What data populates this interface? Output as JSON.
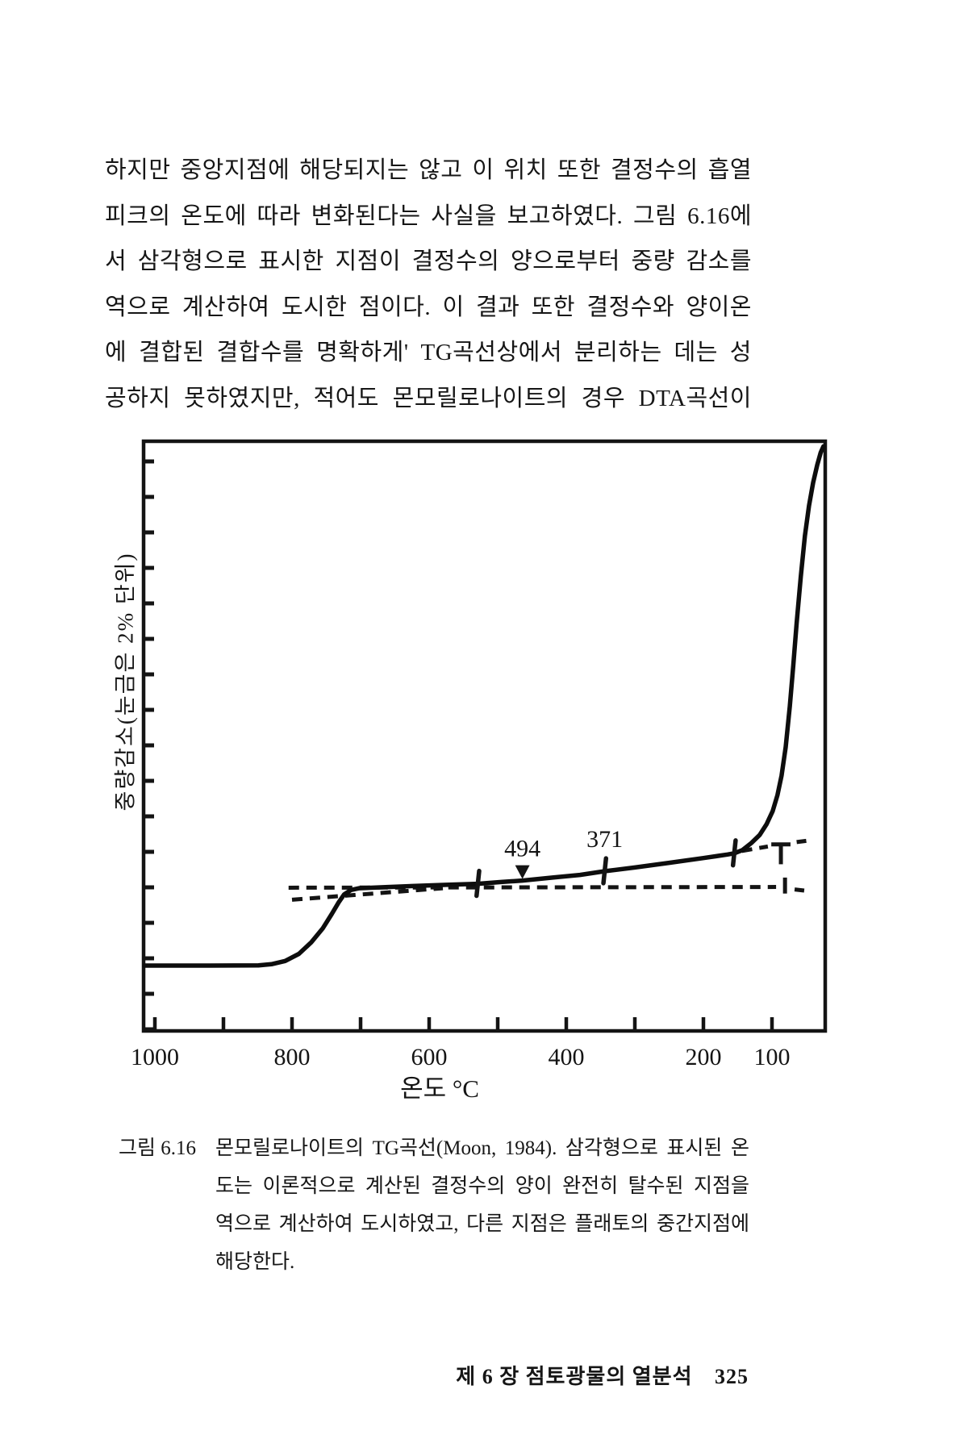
{
  "page": {
    "body_lines": [
      "하지만 중앙지점에 해당되지는 않고 이 위치 또한 결정수의 흡열",
      "피크의 온도에 따라 변화된다는 사실을 보고하였다. 그림 6.16에",
      "서 삼각형으로 표시한 지점이 결정수의 양으로부터 중량 감소를",
      "역으로 계산하여 도시한 점이다. 이 결과 또한 결정수와 양이온",
      "에 결합된 결합수를 명확하게' TG곡선상에서 분리하는 데는 성",
      "공하지 못하였지만, 적어도 몬모릴로나이트의 경우 DTA곡선이"
    ],
    "caption": {
      "label": "그림 6.16",
      "lines": [
        "몬모릴로나이트의 TG곡선(Moon, 1984). 삼각형으로 표시된 온",
        "도는 이론적으로 계산된 결정수의 양이 완전히 탈수된 지점을",
        "역으로 계산하여 도시하였고, 다른 지점은 플래토의 중간지점에",
        "해당한다."
      ]
    },
    "footer": {
      "chapter": "제 6 장   점토광물의 열분석",
      "page_number": "325"
    }
  },
  "chart_data": {
    "type": "line",
    "title": "",
    "xlabel": "온도 °C",
    "ylabel": "중량감소(눈금은 2% 단위)",
    "x_axis": {
      "direction": "reversed",
      "range_c": [
        1016,
        22
      ],
      "ticks_c": [
        1000,
        900,
        800,
        700,
        600,
        500,
        400,
        300,
        200,
        100
      ],
      "labeled_c": [
        1000,
        800,
        600,
        400,
        200,
        100
      ],
      "tick_labels": [
        "1000",
        "800",
        "600",
        "400",
        "200",
        "100"
      ]
    },
    "y_axis": {
      "division_pct": 2,
      "range_pct": [
        -8.1,
        25.2
      ],
      "tick_pcts": [
        -8,
        -6,
        -4,
        -2,
        0,
        2,
        4,
        6,
        8,
        10,
        12,
        14,
        16,
        18,
        20,
        22,
        24
      ],
      "gridlines": false,
      "numeric_labels": false
    },
    "series": [
      {
        "name": "TG curve (montmorillonite)",
        "points": [
          [
            1015,
            -4.41
          ],
          [
            920,
            -4.41
          ],
          [
            849,
            -4.4
          ],
          [
            830,
            -4.33
          ],
          [
            810,
            -4.15
          ],
          [
            790,
            -3.75
          ],
          [
            772,
            -3.1
          ],
          [
            755,
            -2.3
          ],
          [
            742,
            -1.5
          ],
          [
            732,
            -0.85
          ],
          [
            724,
            -0.4
          ],
          [
            714,
            -0.15
          ],
          [
            702,
            -0.05
          ],
          [
            660,
            0.02
          ],
          [
            620,
            0.08
          ],
          [
            575,
            0.14
          ],
          [
            529,
            0.2
          ],
          [
            495,
            0.3
          ],
          [
            464,
            0.38
          ],
          [
            420,
            0.55
          ],
          [
            380,
            0.7
          ],
          [
            344,
            0.91
          ],
          [
            300,
            1.12
          ],
          [
            250,
            1.38
          ],
          [
            200,
            1.65
          ],
          [
            165,
            1.85
          ],
          [
            155,
            1.92
          ],
          [
            143,
            2.1
          ],
          [
            130,
            2.5
          ],
          [
            118,
            2.95
          ],
          [
            108,
            3.55
          ],
          [
            99,
            4.3
          ],
          [
            92,
            5.2
          ],
          [
            86,
            6.3
          ],
          [
            80,
            7.9
          ],
          [
            74,
            10.2
          ],
          [
            69,
            12.5
          ],
          [
            64,
            14.9
          ],
          [
            58,
            17.5
          ],
          [
            52,
            19.8
          ],
          [
            46,
            21.5
          ],
          [
            40,
            22.8
          ],
          [
            34,
            23.8
          ],
          [
            29,
            24.5
          ],
          [
            25,
            24.85
          ]
        ]
      }
    ],
    "annotations": [
      {
        "kind": "plus",
        "t": 529,
        "d": 0.2
      },
      {
        "kind": "triangle",
        "t": 464,
        "d": 0.38,
        "label": "494"
      },
      {
        "kind": "plus",
        "t": 344,
        "d": 0.91,
        "label": "371"
      },
      {
        "kind": "plus",
        "t": 155,
        "d": 1.92
      }
    ],
    "dashed_segments": [
      {
        "pts": [
          [
            805,
            -0.02
          ],
          [
            94,
            0.02
          ]
        ],
        "dashed": true
      },
      {
        "pts": [
          [
            800,
            -0.7
          ],
          [
            580,
            -0.05
          ]
        ],
        "dashed": true
      },
      {
        "pts": [
          [
            81,
            0.55
          ],
          [
            81,
            -0.35
          ]
        ],
        "dashed": false
      },
      {
        "pts": [
          [
            67,
            -0.12
          ],
          [
            53,
            -0.18
          ]
        ],
        "dashed": false
      },
      {
        "pts": [
          [
            144,
            2.05
          ],
          [
            106,
            2.3
          ]
        ],
        "dashed": true
      },
      {
        "pts": [
          [
            101,
            2.42
          ],
          [
            73,
            2.42
          ]
        ],
        "dashed": false
      },
      {
        "pts": [
          [
            87,
            2.42
          ],
          [
            87,
            1.3
          ]
        ],
        "dashed": false
      },
      {
        "pts": [
          [
            64,
            2.55
          ],
          [
            50,
            2.62
          ]
        ],
        "dashed": false
      }
    ],
    "legend": null
  }
}
